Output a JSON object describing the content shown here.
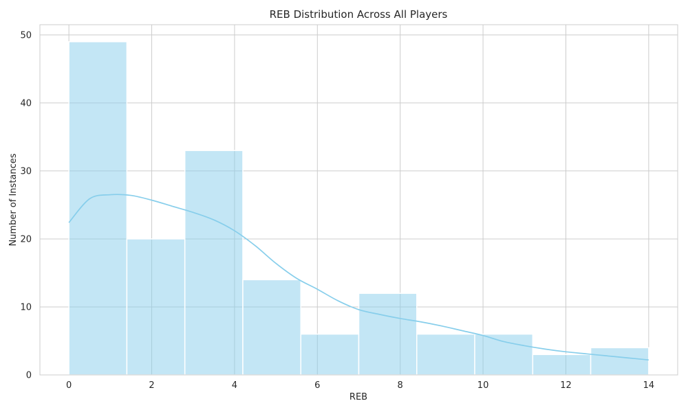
{
  "chart_data": {
    "type": "bar",
    "title": "REB Distribution Across All Players",
    "xlabel": "REB",
    "ylabel": "Number of Instances",
    "bin_edges": [
      0,
      1.4,
      2.8,
      4.2,
      5.6,
      7.0,
      8.4,
      9.8,
      11.2,
      12.6,
      14.0
    ],
    "values": [
      49,
      20,
      33,
      14,
      6,
      12,
      6,
      6,
      3,
      4
    ],
    "xlim": [
      -0.7,
      14.7
    ],
    "ylim": [
      0,
      51.5
    ],
    "xticks": [
      0,
      2,
      4,
      6,
      8,
      10,
      12,
      14
    ],
    "yticks": [
      0,
      10,
      20,
      30,
      40,
      50
    ],
    "kde": {
      "x": [
        0,
        0.5,
        1,
        1.5,
        2,
        2.5,
        3,
        3.5,
        4,
        4.5,
        5,
        5.5,
        6,
        6.5,
        7,
        7.5,
        8,
        8.5,
        9,
        9.5,
        10,
        10.5,
        11,
        11.5,
        12,
        12.5,
        13,
        13.5,
        14
      ],
      "y": [
        22.4,
        25.9,
        26.5,
        26.4,
        25.7,
        24.8,
        23.9,
        22.8,
        21.2,
        19.0,
        16.4,
        14.2,
        12.6,
        10.9,
        9.6,
        8.9,
        8.3,
        7.8,
        7.2,
        6.5,
        5.8,
        4.9,
        4.3,
        3.8,
        3.4,
        3.1,
        2.8,
        2.5,
        2.2
      ]
    },
    "grid": true,
    "colors": {
      "bar": "#87ceeb",
      "line": "#87ceeb",
      "grid": "#cccccc",
      "bar_edge": "#ffffff"
    }
  }
}
